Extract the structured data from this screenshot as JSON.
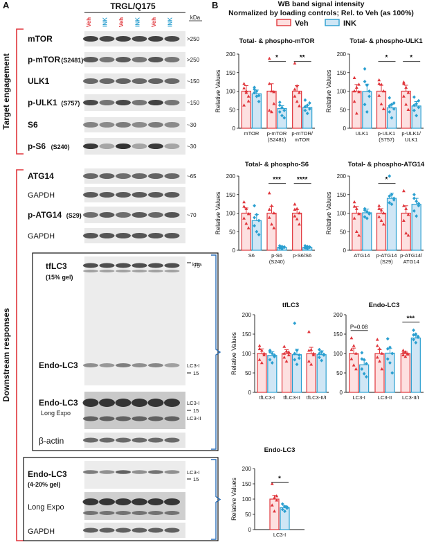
{
  "panel_a": {
    "label": "A",
    "header": "TRGL/Q175",
    "kda": "kDa",
    "lanes": [
      "Veh",
      "INK",
      "Veh",
      "INK",
      "Veh",
      "INK"
    ],
    "group_target": "Target engagement",
    "group_downstream": "Downstream responses",
    "blots": [
      {
        "name": "mTOR",
        "sub": "",
        "mw": ">250"
      },
      {
        "name": "p-mTOR",
        "sub": "(S2481)",
        "mw": ">250"
      },
      {
        "name": "ULK1",
        "sub": "",
        "mw": "~150"
      },
      {
        "name": "p-ULK1",
        "sub": "(S757)",
        "mw": "~150"
      },
      {
        "name": "S6",
        "sub": "",
        "mw": "~30"
      },
      {
        "name": "p-S6",
        "sub": "(S240)",
        "mw": "~30"
      },
      {
        "name": "ATG14",
        "sub": "",
        "mw": "~65"
      },
      {
        "name": "GAPDH",
        "sub": "",
        "mw": ""
      },
      {
        "name": "p-ATG14",
        "sub": "(S29)",
        "mw": "~70"
      },
      {
        "name": "GAPDH",
        "sub": "",
        "mw": ""
      }
    ],
    "lc3_box1": {
      "kda": "kDa",
      "tflc3": "tfLC3",
      "tflc3_sub": "(15% gel)",
      "tflc3_mw": "75",
      "endo": "Endo-LC3",
      "endo_lc3i": "LC3-I",
      "endo_15": "15",
      "endo_long": "Endo-LC3",
      "long_expo": "Long Expo",
      "long_lc3i": "LC3-I",
      "long_15": "15",
      "long_lc3ii": "LC3-II",
      "actin": "β-actin"
    },
    "lc3_box2": {
      "endo": "Endo-LC3",
      "sub": "(4-20% gel)",
      "lc3i": "LC3-I",
      "mw15": "15",
      "long_expo": "Long Expo",
      "gapdh": "GAPDH"
    }
  },
  "panel_b": {
    "label": "B",
    "title1": "WB band signal intensity",
    "title2": "Normalized by loading controls; Rel. to Veh (as 100%)",
    "legend": [
      {
        "name": "Veh",
        "fill": "#fde0e0",
        "stroke": "#e0353b"
      },
      {
        "name": "INK",
        "fill": "#cfe6f5",
        "stroke": "#2a9fd0"
      }
    ],
    "ylabel": "Relative Values"
  },
  "chart_data": [
    {
      "type": "bar",
      "title": "Total- & phospho-mTOR",
      "ylabel": "Relative Values",
      "ylim": [
        0,
        200
      ],
      "categories": [
        "mTOR",
        "p-mTOR\n(S2481)",
        "p-mTOR/\nmTOR"
      ],
      "series": [
        {
          "name": "Veh",
          "values": [
            100,
            100,
            100
          ]
        },
        {
          "name": "INK",
          "values": [
            93,
            53,
            56
          ]
        }
      ],
      "errors": [
        [
          15,
          20,
          15
        ],
        [
          10,
          8,
          6
        ]
      ],
      "points": [
        [
          [
            120,
            96,
            73,
            62,
            100,
            86,
            108
          ],
          [
            188,
            100,
            66,
            48,
            44,
            98,
            120
          ],
          [
            175,
            114,
            96,
            86,
            72,
            60,
            105
          ]
        ],
        [
          [
            105,
            86,
            72,
            96,
            100,
            88,
            110
          ],
          [
            70,
            56,
            48,
            44,
            34,
            28,
            62
          ],
          [
            76,
            62,
            52,
            48,
            40,
            68,
            58
          ]
        ]
      ],
      "significance": [
        {
          "pair": 1,
          "label": "*"
        },
        {
          "pair": 2,
          "label": "**"
        }
      ]
    },
    {
      "type": "bar",
      "title": "Total- & phospho-ULK1",
      "ylabel": "Relative Values",
      "ylim": [
        0,
        200
      ],
      "categories": [
        "ULK1",
        "p-ULK1\n(S757)",
        "p-ULK1/\nULK1"
      ],
      "series": [
        {
          "name": "Veh",
          "values": [
            100,
            100,
            100
          ]
        },
        {
          "name": "INK",
          "values": [
            99,
            55,
            60
          ]
        }
      ],
      "errors": [
        [
          18,
          16,
          16
        ],
        [
          20,
          10,
          12
        ]
      ],
      "points": [
        [
          [
            136,
            110,
            98,
            72,
            40,
            118,
            100
          ],
          [
            130,
            118,
            100,
            88,
            65,
            52,
            120
          ],
          [
            124,
            110,
            96,
            86,
            64,
            50,
            120
          ]
        ],
        [
          [
            160,
            116,
            100,
            64,
            44,
            86,
            126
          ],
          [
            82,
            64,
            52,
            44,
            28,
            68,
            60
          ],
          [
            84,
            66,
            56,
            48,
            34,
            74,
            62
          ]
        ]
      ],
      "significance": [
        {
          "pair": 1,
          "label": "*"
        },
        {
          "pair": 2,
          "label": "*"
        }
      ]
    },
    {
      "type": "bar",
      "title": "Total- & phospho-S6",
      "ylabel": "Relative Values",
      "ylim": [
        0,
        200
      ],
      "categories": [
        "S6",
        "p-S6\n(S240)",
        "p-S6/S6"
      ],
      "series": [
        {
          "name": "Veh",
          "values": [
            100,
            100,
            100
          ]
        },
        {
          "name": "INK",
          "values": [
            80,
            8,
            8
          ]
        }
      ],
      "errors": [
        [
          14,
          18,
          10
        ],
        [
          16,
          2,
          2
        ]
      ],
      "points": [
        [
          [
            130,
            112,
            98,
            86,
            72,
            60,
            118
          ],
          [
            154,
            120,
            100,
            88,
            70,
            60,
            110
          ],
          [
            124,
            112,
            100,
            92,
            84,
            70,
            110
          ]
        ],
        [
          [
            120,
            96,
            80,
            66,
            50,
            42,
            88
          ],
          [
            12,
            10,
            8,
            6,
            4,
            9,
            7
          ],
          [
            12,
            10,
            8,
            6,
            4,
            9,
            7
          ]
        ]
      ],
      "significance": [
        {
          "pair": 1,
          "label": "***"
        },
        {
          "pair": 2,
          "label": "****"
        }
      ]
    },
    {
      "type": "bar",
      "title": "Total- & phospho-ATG14",
      "ylabel": "Relative Values",
      "ylim": [
        0,
        200
      ],
      "categories": [
        "ATG14",
        "p-ATG14\n(S29)",
        "p-ATG14/\nATG14"
      ],
      "series": [
        {
          "name": "Veh",
          "values": [
            100,
            100,
            100
          ]
        },
        {
          "name": "INK",
          "values": [
            101,
            140,
            124
          ]
        }
      ],
      "errors": [
        [
          18,
          12,
          20
        ],
        [
          10,
          14,
          16
        ]
      ],
      "points": [
        [
          [
            130,
            112,
            98,
            86,
            50,
            40,
            118
          ],
          [
            120,
            108,
            100,
            90,
            80,
            70,
            112
          ],
          [
            160,
            112,
            96,
            80,
            46,
            40,
            120
          ]
        ],
        [
          [
            112,
            104,
            98,
            90,
            86,
            100,
            108
          ],
          [
            200,
            150,
            140,
            128,
            124,
            136,
            146
          ],
          [
            150,
            132,
            120,
            106,
            92,
            126,
            140
          ]
        ]
      ],
      "significance": [
        {
          "pair": 1,
          "label": "*"
        }
      ]
    },
    {
      "type": "bar",
      "title": "tfLC3",
      "ylabel": "Relative Values",
      "ylim": [
        0,
        200
      ],
      "categories": [
        "tfLC3-I",
        "tfLC3-II",
        "tfLC3-II/I"
      ],
      "series": [
        {
          "name": "Veh",
          "values": [
            100,
            100,
            100
          ]
        },
        {
          "name": "INK",
          "values": [
            95,
            97,
            97
          ]
        }
      ],
      "errors": [
        [
          12,
          10,
          16
        ],
        [
          10,
          14,
          10
        ]
      ],
      "points": [
        [
          [
            120,
            108,
            96,
            84,
            76,
            100,
            112
          ],
          [
            118,
            106,
            96,
            90,
            80,
            104,
            100
          ],
          [
            156,
            110,
            96,
            80,
            72,
            100,
            108
          ]
        ],
        [
          [
            108,
            100,
            92,
            84,
            76,
            96,
            104
          ],
          [
            178,
            108,
            96,
            84,
            72,
            88,
            100
          ],
          [
            110,
            104,
            98,
            90,
            82,
            96,
            100
          ]
        ]
      ],
      "significance": []
    },
    {
      "type": "bar",
      "title": "Endo-LC3",
      "ylabel": "Relative Values",
      "ylim": [
        0,
        200
      ],
      "categories": [
        "LC3-I",
        "LC3-II",
        "LC3-II/I"
      ],
      "series": [
        {
          "name": "Veh",
          "values": [
            100,
            100,
            100
          ]
        },
        {
          "name": "INK",
          "values": [
            71,
            101,
            140
          ]
        }
      ],
      "errors": [
        [
          14,
          10,
          6
        ],
        [
          12,
          12,
          6
        ]
      ],
      "points": [
        [
          [
            140,
            120,
            100,
            86,
            70,
            60,
            110
          ],
          [
            136,
            112,
            100,
            90,
            80,
            60,
            120
          ],
          [
            108,
            104,
            100,
            96,
            92,
            98,
            102
          ]
        ],
        [
          [
            102,
            84,
            74,
            60,
            48,
            40,
            86
          ],
          [
            138,
            116,
            100,
            86,
            76,
            50,
            112
          ],
          [
            160,
            150,
            142,
            136,
            128,
            144,
            148
          ]
        ]
      ],
      "significance": [
        {
          "pair": 0,
          "label": "P=0.08"
        },
        {
          "pair": 2,
          "label": "***"
        }
      ]
    },
    {
      "type": "bar",
      "title": "Endo-LC3",
      "ylabel": "Relative Values",
      "ylim": [
        0,
        200
      ],
      "categories": [
        "LC3-I"
      ],
      "series": [
        {
          "name": "Veh",
          "values": [
            100
          ]
        },
        {
          "name": "INK",
          "values": [
            72
          ]
        }
      ],
      "errors": [
        [
          12
        ],
        [
          6
        ]
      ],
      "points": [
        [
          [
            150,
            104,
            96,
            80,
            60,
            110
          ]
        ],
        [
          [
            84,
            76,
            70,
            66,
            60,
            74
          ]
        ]
      ],
      "significance": [
        {
          "pair": 0,
          "label": "*"
        }
      ]
    }
  ]
}
